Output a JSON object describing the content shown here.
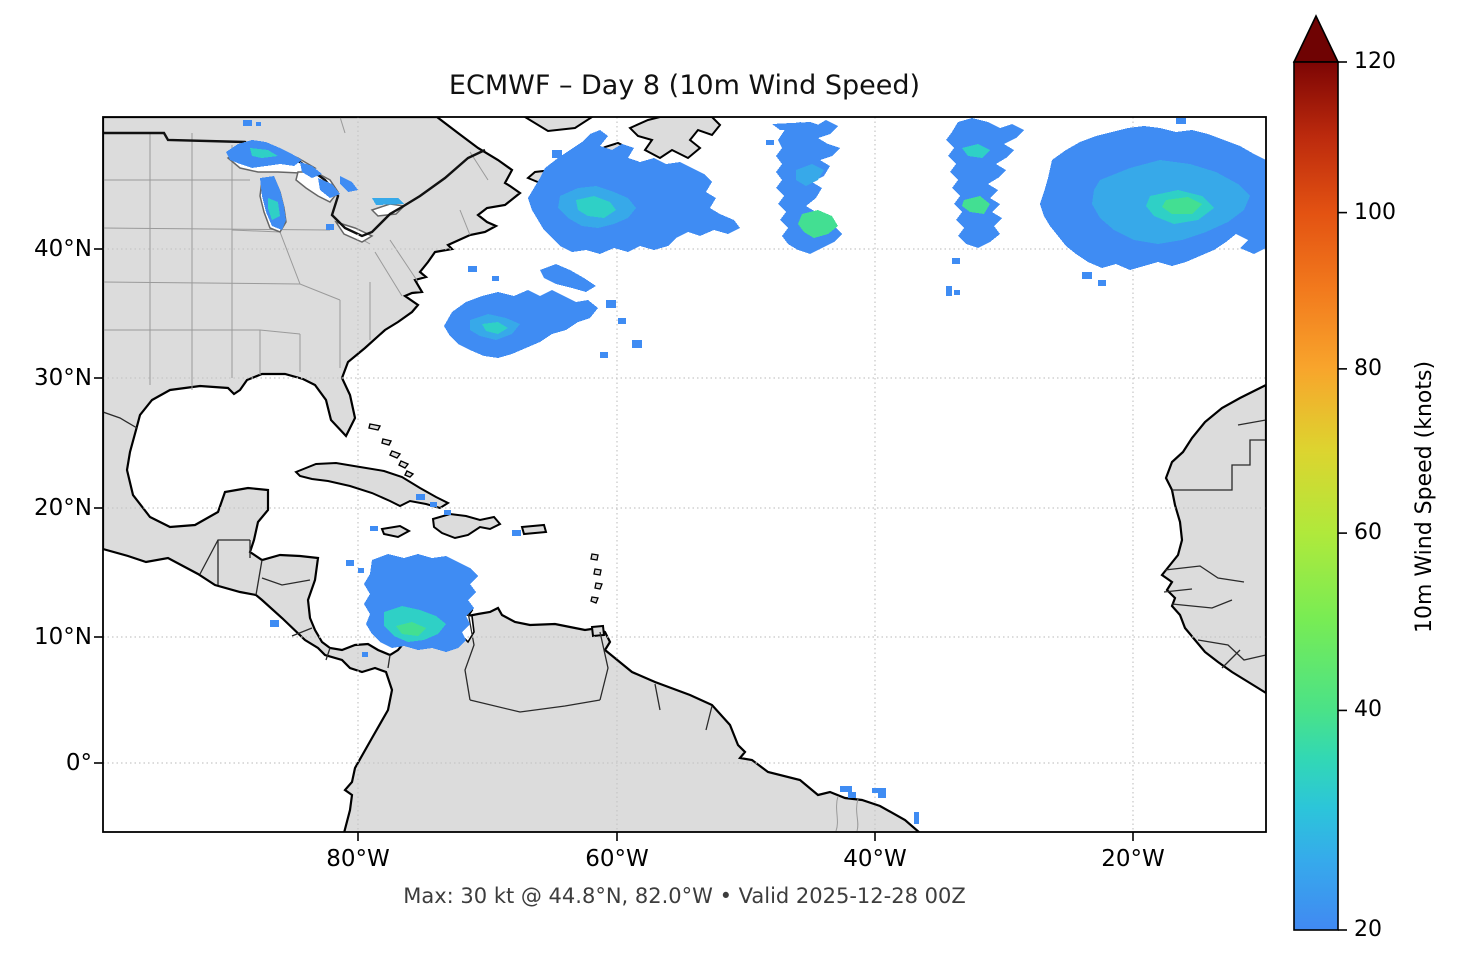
{
  "title": "ECMWF – Day 8 (10m Wind Speed)",
  "subtitle": "Max: 30 kt @ 44.8°N, 82.0°W • Valid 2025-12-28 00Z",
  "axes": {
    "x_tick_labels": [
      "80°W",
      "60°W",
      "40°W",
      "20°W"
    ],
    "y_tick_labels": [
      "40°N",
      "30°N",
      "20°N",
      "10°N",
      "0°"
    ]
  },
  "colorbar": {
    "label": "10m Wind Speed (knots)",
    "ticks": [
      20,
      40,
      60,
      80,
      100,
      120
    ],
    "min": 20,
    "max": 120,
    "extend": "max",
    "arrow_color": "#6f0303",
    "stops": [
      {
        "value": 20,
        "color": "#4189f2"
      },
      {
        "value": 25,
        "color": "#36a9ec"
      },
      {
        "value": 30,
        "color": "#2cc5da"
      },
      {
        "value": 35,
        "color": "#32d8b4"
      },
      {
        "value": 40,
        "color": "#4ae288"
      },
      {
        "value": 50,
        "color": "#78ec54"
      },
      {
        "value": 60,
        "color": "#b0e93b"
      },
      {
        "value": 70,
        "color": "#ddd42f"
      },
      {
        "value": 80,
        "color": "#f8a52c"
      },
      {
        "value": 90,
        "color": "#f27a1d"
      },
      {
        "value": 100,
        "color": "#e35212"
      },
      {
        "value": 110,
        "color": "#bc2a0d"
      },
      {
        "value": 120,
        "color": "#7d0504"
      }
    ]
  },
  "palette": {
    "land": "#dcdcdc",
    "coastline": "#000000",
    "state_border": "#9a9a9a",
    "country_border": "#2a2a2a",
    "gridline": "#c6c6c6",
    "ocean": "#ffffff",
    "wind_20_blue": "#3f8cf3",
    "wind_25_lightblue": "#37a9e9",
    "wind_30_teal": "#2fd0c6",
    "wind_33_green": "#43df92"
  },
  "chart_data": {
    "type": "heatmap",
    "model": "ECMWF",
    "lead": "Day 8",
    "field": "10m Wind Speed",
    "units": "knots",
    "valid": "2025-12-28 00Z",
    "max": {
      "value_kt": 30,
      "lat": "44.8°N",
      "lon": "82.0°W"
    },
    "extent": {
      "lon_min": "100°W",
      "lon_max": "10°W",
      "lat_min": "5°S",
      "lat_max": "50°N"
    },
    "colorbar_range": {
      "min_kt": 20,
      "max_kt": 120,
      "ticks_kt": [
        20,
        40,
        60,
        80,
        100,
        120
      ],
      "extend": "max"
    },
    "grid": "dotted graticule every 10° latitude / 20° longitude",
    "shaded_features": [
      {
        "region": "Great Lakes (Superior, Michigan, Huron, Ontario)",
        "lat": "42–49°N",
        "lon": "76–92°W",
        "wind_kt": "20–30",
        "note": "contains plotted maximum 30 kt at 44.8°N 82.0°W"
      },
      {
        "region": "Atlantic south and east of Nova Scotia",
        "lat": "40–47°N",
        "lon": "52–63°W",
        "wind_kt": "20–30"
      },
      {
        "region": "Off US Southeast coast (Gulf Stream)",
        "lat": "31–36°N",
        "lon": "65–76°W",
        "wind_kt": "20–28"
      },
      {
        "region": "Central North Atlantic blob",
        "lat": "40–49°N",
        "lon": "41–46°W",
        "wind_kt": "20–30"
      },
      {
        "region": "North Atlantic near 31°W",
        "lat": "40–49°N",
        "lon": "28–34°W",
        "wind_kt": "20–28"
      },
      {
        "region": "Eastern North Atlantic toward Europe (largest area)",
        "lat": "40–48°N",
        "lon": "10–27°W",
        "wind_kt": "20–30"
      },
      {
        "region": "Southern Caribbean off Venezuela / Colombia",
        "lat": "11–15°N",
        "lon": "67–76°W",
        "wind_kt": "20–30"
      },
      {
        "region": "Scattered specks near Hispaniola and Puerto Rico",
        "lat": "17–19°N",
        "lon": "60–71°W",
        "wind_kt": "~20"
      },
      {
        "region": "Northeast Brazil coastal specks",
        "lat": "2–4°S",
        "lon": "34–38°W",
        "wind_kt": "~20"
      },
      {
        "region": "Nicaragua Pacific coast speck",
        "lat": "~11°N",
        "lon": "~87°W",
        "wind_kt": "~20"
      }
    ]
  }
}
